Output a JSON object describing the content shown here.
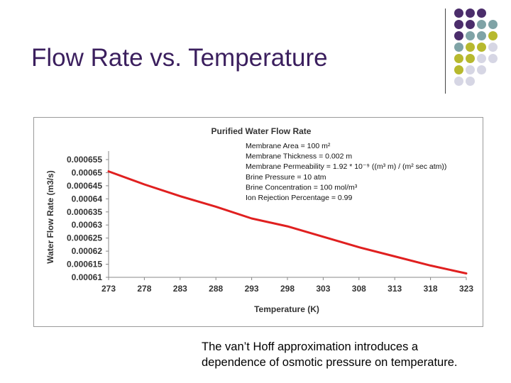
{
  "slide": {
    "title": "Flow Rate vs. Temperature",
    "caption_lines": [
      "The van’t Hoff approximation introduces a",
      "dependence of osmotic pressure on temperature."
    ]
  },
  "decor": {
    "dot_colors": [
      "#4b2d6b",
      "#7fa3a6",
      "#b7b92e",
      "#d6d6e4"
    ]
  },
  "chart_data": {
    "type": "line",
    "title": "Purified Water Flow Rate",
    "xlabel": "Temperature (K)",
    "ylabel": "Water Flow Rate (m3/s)",
    "x_ticks": [
      273,
      278,
      283,
      288,
      293,
      298,
      303,
      308,
      313,
      318,
      323
    ],
    "y_ticks": [
      "0.00061",
      "0.000615",
      "0.00062",
      "0.000625",
      "0.00063",
      "0.000635",
      "0.00064",
      "0.000645",
      "0.00065",
      "0.000655"
    ],
    "xlim": [
      273,
      323
    ],
    "ylim": [
      0.00061,
      0.000655
    ],
    "grid": false,
    "line_color": "#e02020",
    "series": [
      {
        "x": [
          273,
          278,
          283,
          288,
          293,
          298,
          303,
          308,
          313,
          318,
          323
        ],
        "values": [
          0.0006505,
          0.0006455,
          0.000641,
          0.000637,
          0.0006325,
          0.0006295,
          0.0006255,
          0.0006215,
          0.000618,
          0.0006145,
          0.0006115
        ]
      }
    ],
    "annotation_lines": [
      "Membrane Area = 100 m²",
      "Membrane Thickness = 0.002 m",
      "Membrane Permeability = 1.92 * 10⁻⁹ ((m³ m) / (m² sec atm))",
      "Brine Pressure = 10 atm",
      "Brine Concentration = 100 mol/m³",
      "Ion Rejection Percentage = 0.99"
    ]
  }
}
